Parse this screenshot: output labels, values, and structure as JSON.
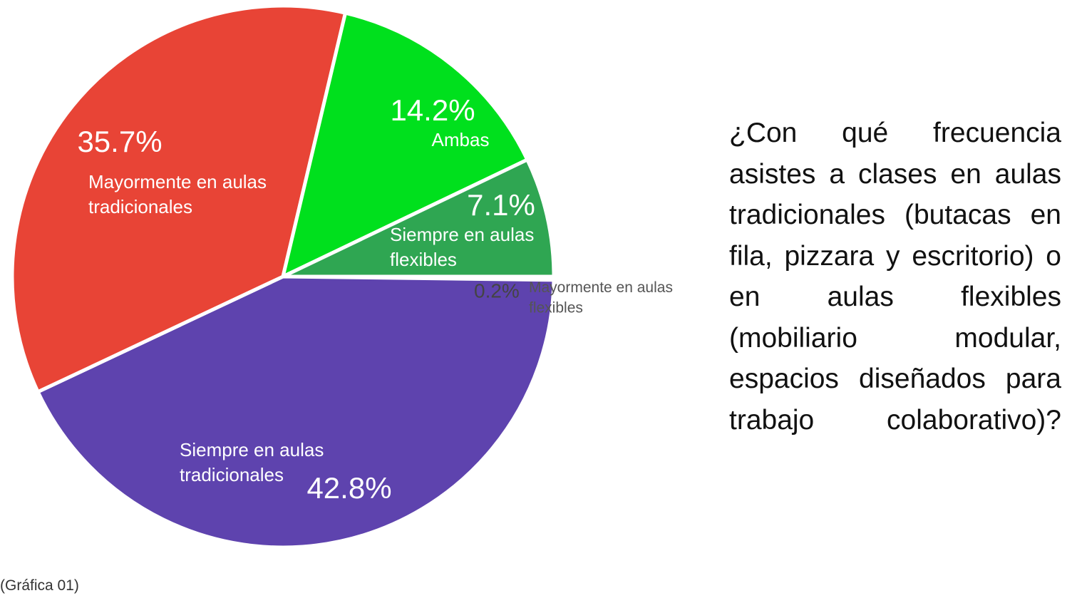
{
  "chart_data": {
    "type": "pie",
    "title": "¿Con qué frecuencia asistes a clases en aulas tradicionales (butacas en fila, pizzara y escritorio) o en aulas flexibles (mobiliario modular, espacios diseñados para trabajo colaborativo)?",
    "caption": "(Gráfica 01)",
    "categories": [
      "Mayormente en aulas flexibles",
      "Siempre en aulas tradicionales",
      "Mayormente en aulas tradicionales",
      "Ambas",
      "Siempre en aulas flexibles"
    ],
    "values": [
      0.2,
      42.8,
      35.7,
      14.2,
      7.1
    ],
    "value_labels": [
      "0.2%",
      "42.8%",
      "35.7%",
      "14.2%",
      "7.1%"
    ],
    "colors": [
      "#6d9eeb",
      "#5e43ae",
      "#e84436",
      "#00e01d",
      "#2fa652"
    ]
  }
}
